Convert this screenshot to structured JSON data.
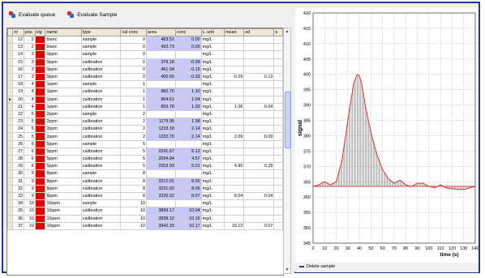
{
  "toolbar": {
    "evaluate_queue": "Evaluate queue",
    "evaluate_sample": "Evaluate Sample"
  },
  "grid": {
    "columns": [
      "nr",
      "pos",
      "sig",
      "name",
      "type",
      "cal conc",
      "area",
      "conc",
      "c. unit",
      "mean",
      "sd",
      "s"
    ],
    "rows": [
      {
        "nr": "12",
        "pos": "2",
        "name": "blanc",
        "type": "sample",
        "calconc": "0",
        "area": "483.51",
        "conc": "0.00",
        "unit": "mg/L",
        "mean": "",
        "sd": ""
      },
      {
        "nr": "13",
        "pos": "2",
        "name": "blanc",
        "type": "sample",
        "calconc": "0",
        "area": "493.73",
        "conc": "0.00",
        "unit": "mg/L",
        "mean": "",
        "sd": ""
      },
      {
        "nr": "14",
        "pos": "3",
        "name": "0ppm",
        "type": "sample",
        "calconc": "0",
        "area": "",
        "conc": "",
        "unit": "mg/L",
        "mean": "",
        "sd": ""
      },
      {
        "nr": "15",
        "pos": "3",
        "name": "0ppm",
        "type": "calibration",
        "calconc": "0",
        "area": "379.18",
        "conc": "-0.39",
        "unit": "mg/L",
        "mean": "",
        "sd": ""
      },
      {
        "nr": "16",
        "pos": "3",
        "name": "0ppm",
        "type": "calibration",
        "calconc": "0",
        "area": "461.04",
        "conc": "-0.15",
        "unit": "mg/L",
        "mean": "",
        "sd": ""
      },
      {
        "nr": "17",
        "pos": "3",
        "name": "0ppm",
        "type": "calibration",
        "calconc": "0",
        "area": "400.50",
        "conc": "-0.33",
        "unit": "mg/L",
        "mean": "-0.29",
        "sd": "0.13"
      },
      {
        "nr": "18",
        "pos": "4",
        "name": "1ppm",
        "type": "sample",
        "calconc": "1",
        "area": "",
        "conc": "",
        "unit": "mg/L",
        "mean": "",
        "sd": ""
      },
      {
        "nr": "19",
        "pos": "4",
        "name": "1ppm",
        "type": "calibration",
        "calconc": "1",
        "area": "882.70",
        "conc": "1.10",
        "unit": "mg/L",
        "mean": "",
        "sd": ""
      },
      {
        "nr": "20",
        "pos": "4",
        "name": "1ppm",
        "type": "calibration",
        "calconc": "1",
        "area": "864.61",
        "conc": "1.04",
        "unit": "mg/L",
        "mean": "",
        "sd": ""
      },
      {
        "nr": "21",
        "pos": "4",
        "name": "1ppm",
        "type": "calibration",
        "calconc": "1",
        "area": "859.78",
        "conc": "1.03",
        "unit": "mg/L",
        "mean": "1.06",
        "sd": "0.04"
      },
      {
        "nr": "22",
        "pos": "5",
        "name": "2ppm",
        "type": "sample",
        "calconc": "2",
        "area": "",
        "conc": "",
        "unit": "mg/L",
        "mean": "",
        "sd": ""
      },
      {
        "nr": "23",
        "pos": "5",
        "name": "2ppm",
        "type": "calibration",
        "calconc": "2",
        "area": "1179.95",
        "conc": "1.98",
        "unit": "mg/L",
        "mean": "",
        "sd": ""
      },
      {
        "nr": "24",
        "pos": "5",
        "name": "2ppm",
        "type": "calibration",
        "calconc": "2",
        "area": "1233.18",
        "conc": "2.14",
        "unit": "mg/L",
        "mean": "",
        "sd": ""
      },
      {
        "nr": "25",
        "pos": "5",
        "name": "2ppm",
        "type": "calibration",
        "calconc": "2",
        "area": "1233.70",
        "conc": "2.14",
        "unit": "mg/L",
        "mean": "2.09",
        "sd": "0.09"
      },
      {
        "nr": "26",
        "pos": "6",
        "name": "5ppm",
        "type": "sample",
        "calconc": "5",
        "area": "",
        "conc": "",
        "unit": "mg/L",
        "mean": "",
        "sd": ""
      },
      {
        "nr": "27",
        "pos": "6",
        "name": "5ppm",
        "type": "calibration",
        "calconc": "5",
        "area": "2241.67",
        "conc": "5.13",
        "unit": "mg/L",
        "mean": "",
        "sd": ""
      },
      {
        "nr": "28",
        "pos": "6",
        "name": "5ppm",
        "type": "calibration",
        "calconc": "5",
        "area": "2054.94",
        "conc": "4.57",
        "unit": "mg/L",
        "mean": "",
        "sd": ""
      },
      {
        "nr": "29",
        "pos": "6",
        "name": "5ppm",
        "type": "calibration",
        "calconc": "5",
        "area": "2203.93",
        "conc": "5.01",
        "unit": "mg/L",
        "mean": "4.90",
        "sd": "0.29"
      },
      {
        "nr": "30",
        "pos": "9",
        "name": "8ppm",
        "type": "sample",
        "calconc": "8",
        "area": "",
        "conc": "",
        "unit": "mg/L",
        "mean": "",
        "sd": ""
      },
      {
        "nr": "31",
        "pos": "9",
        "name": "8ppm",
        "type": "calibration",
        "calconc": "8",
        "area": "3212.01",
        "conc": "8.00",
        "unit": "mg/L",
        "mean": "",
        "sd": ""
      },
      {
        "nr": "32",
        "pos": "9",
        "name": "8ppm",
        "type": "calibration",
        "calconc": "8",
        "area": "3231.60",
        "conc": "8.06",
        "unit": "mg/L",
        "mean": "",
        "sd": ""
      },
      {
        "nr": "33",
        "pos": "9",
        "name": "8ppm",
        "type": "calibration",
        "calconc": "8",
        "area": "3235.02",
        "conc": "8.07",
        "unit": "mg/L",
        "mean": "8.04",
        "sd": "0.04"
      },
      {
        "nr": "34",
        "pos": "10",
        "name": "10ppm",
        "type": "sample",
        "calconc": "10",
        "area": "",
        "conc": "",
        "unit": "mg/L",
        "mean": "",
        "sd": ""
      },
      {
        "nr": "35",
        "pos": "10",
        "name": "10ppm",
        "type": "calibration",
        "calconc": "10",
        "area": "3899.17",
        "conc": "10.04",
        "unit": "mg/L",
        "mean": "",
        "sd": ""
      },
      {
        "nr": "36",
        "pos": "10",
        "name": "10ppm",
        "type": "calibration",
        "calconc": "10",
        "area": "3938.12",
        "conc": "10.16",
        "unit": "mg/L",
        "mean": "",
        "sd": ""
      },
      {
        "nr": "37",
        "pos": "10",
        "name": "10ppm",
        "type": "calibration",
        "calconc": "10",
        "area": "3942.33",
        "conc": "10.17",
        "unit": "mg/L",
        "mean": "10.12",
        "sd": "0.07"
      }
    ],
    "current_row_index": 8
  },
  "chart_data": {
    "type": "line",
    "xlabel": "time (s)",
    "ylabel": "signal",
    "xlim": [
      0,
      140
    ],
    "ylim": [
      345,
      420
    ],
    "xticks": [
      0,
      10,
      20,
      30,
      40,
      50,
      60,
      70,
      80,
      90,
      100,
      110,
      120,
      130,
      140
    ],
    "yticks": [
      345,
      350,
      355,
      360,
      365,
      370,
      375,
      380,
      385,
      390,
      395,
      400,
      405,
      410,
      415,
      420
    ],
    "grid": true,
    "baseline": 363.5,
    "x": [
      0,
      5,
      10,
      15,
      20,
      25,
      30,
      35,
      38,
      40,
      42,
      45,
      50,
      55,
      60,
      65,
      70,
      75,
      80,
      85,
      90,
      95,
      100,
      105,
      110,
      115,
      120,
      125,
      130,
      135,
      140
    ],
    "y": [
      363.5,
      364,
      365,
      364,
      365,
      372,
      385,
      397,
      400,
      399.5,
      397,
      390,
      381,
      374,
      369,
      366,
      364.5,
      365.5,
      364,
      363.5,
      364.5,
      364.5,
      363.5,
      363,
      364,
      363,
      362.8,
      362.5,
      362.5,
      363,
      363.5
    ],
    "line_color": "#e03030",
    "fill_color": "#808080"
  },
  "legend": {
    "delete_sample": "Delete sample"
  }
}
